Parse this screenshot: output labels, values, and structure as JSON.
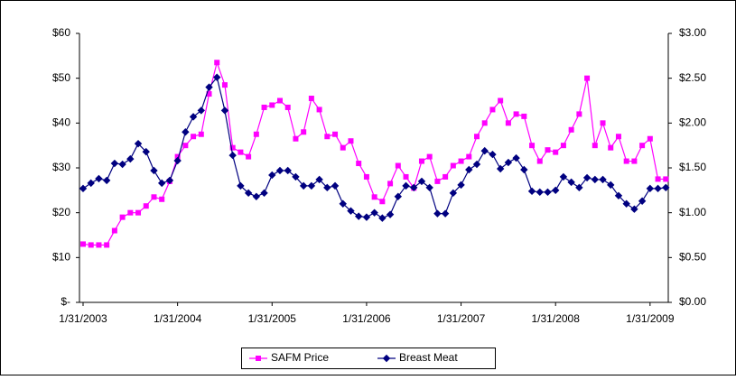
{
  "chart_data": {
    "type": "line",
    "categories": [
      "1/31/2003",
      null,
      null,
      null,
      null,
      null,
      null,
      null,
      null,
      null,
      null,
      null,
      "1/31/2004",
      null,
      null,
      null,
      null,
      null,
      null,
      null,
      null,
      null,
      null,
      null,
      "1/31/2005",
      null,
      null,
      null,
      null,
      null,
      null,
      null,
      null,
      null,
      null,
      null,
      "1/31/2006",
      null,
      null,
      null,
      null,
      null,
      null,
      null,
      null,
      null,
      null,
      null,
      "1/31/2007",
      null,
      null,
      null,
      null,
      null,
      null,
      null,
      null,
      null,
      null,
      null,
      "1/31/2008",
      null,
      null,
      null,
      null,
      null,
      null,
      null,
      null,
      null,
      null,
      null,
      "1/31/2009",
      null,
      null
    ],
    "series": [
      {
        "name": "SAFM Price",
        "color": "#ff00ff",
        "marker": "square",
        "values": [
          13,
          12.8,
          12.8,
          12.8,
          16,
          19,
          20,
          20,
          21.5,
          23.5,
          23,
          27,
          32.5,
          35,
          37,
          37.5,
          46.5,
          53.5,
          48.5,
          34.5,
          33.5,
          32.5,
          37.5,
          43.5,
          44,
          45,
          43.5,
          36.5,
          38,
          45.5,
          43,
          37,
          37.5,
          34.5,
          36,
          31,
          28,
          23.5,
          22.5,
          26.5,
          30.5,
          28,
          25.5,
          31.5,
          32.5,
          27,
          28,
          30.5,
          31.5,
          32.5,
          37,
          40,
          43,
          45,
          40,
          42,
          41.5,
          35,
          31.5,
          34,
          33.5,
          35,
          38.5,
          42,
          50,
          35,
          40,
          34.5,
          37,
          31.5,
          31.5,
          35,
          36.5,
          27.5,
          27.5
        ]
      },
      {
        "name": "Breast Meat",
        "color": "#000080",
        "marker": "diamond",
        "axis": "y2",
        "values": [
          1.27,
          1.33,
          1.38,
          1.36,
          1.55,
          1.54,
          1.6,
          1.77,
          1.68,
          1.47,
          1.33,
          1.36,
          1.58,
          1.9,
          2.07,
          2.14,
          2.4,
          2.51,
          2.14,
          1.64,
          1.3,
          1.22,
          1.18,
          1.22,
          1.42,
          1.47,
          1.47,
          1.4,
          1.3,
          1.3,
          1.37,
          1.28,
          1.3,
          1.1,
          1.02,
          0.96,
          0.95,
          1.0,
          0.94,
          0.98,
          1.18,
          1.3,
          1.28,
          1.35,
          1.28,
          0.99,
          0.99,
          1.22,
          1.31,
          1.48,
          1.54,
          1.69,
          1.65,
          1.49,
          1.56,
          1.61,
          1.48,
          1.24,
          1.23,
          1.23,
          1.25,
          1.4,
          1.34,
          1.28,
          1.39,
          1.37,
          1.37,
          1.31,
          1.19,
          1.1,
          1.04,
          1.13,
          1.27,
          1.27,
          1.28
        ]
      }
    ],
    "ylim": [
      0,
      60
    ],
    "yticks": [
      {
        "value": 0,
        "label": "$-"
      },
      {
        "value": 10,
        "label": "$10"
      },
      {
        "value": 20,
        "label": "$20"
      },
      {
        "value": 30,
        "label": "$30"
      },
      {
        "value": 40,
        "label": "$40"
      },
      {
        "value": 50,
        "label": "$50"
      },
      {
        "value": 60,
        "label": "$60"
      }
    ],
    "y2lim": [
      0,
      3
    ],
    "y2ticks": [
      {
        "value": 0,
        "label": "$0.00"
      },
      {
        "value": 0.5,
        "label": "$0.50"
      },
      {
        "value": 1,
        "label": "$1.00"
      },
      {
        "value": 1.5,
        "label": "$1.50"
      },
      {
        "value": 2,
        "label": "$2.00"
      },
      {
        "value": 2.5,
        "label": "$2.50"
      },
      {
        "value": 3,
        "label": "$3.00"
      }
    ],
    "grid": false,
    "legend": "bottom"
  }
}
